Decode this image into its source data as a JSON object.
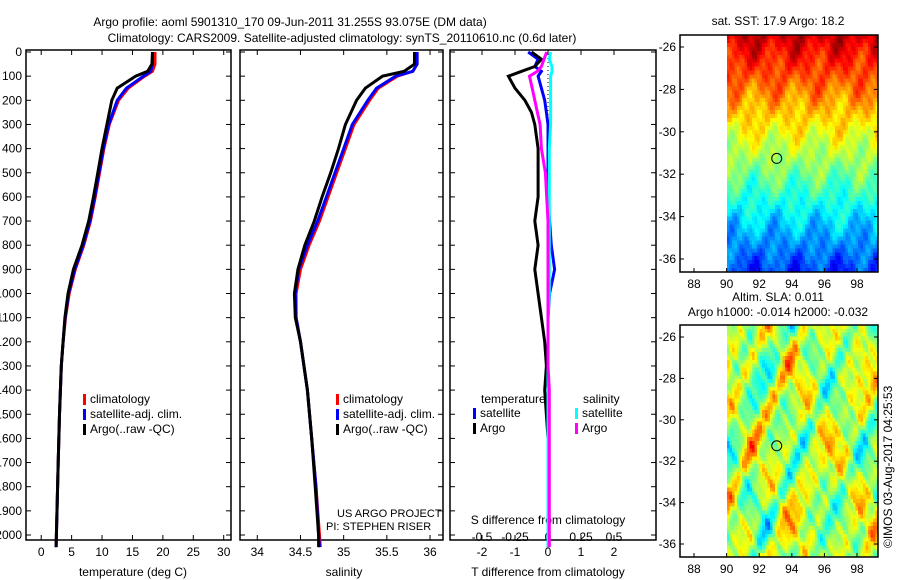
{
  "title_line1": "Argo profile: aoml 5901310_170 09-Jun-2011 31.255S 93.075E (DM data)",
  "title_line2": "Climatology: CARS2009. Satellite-adjusted climatology: synTS_20110610.nc (0.6d later)",
  "colors": {
    "climatology": "#ff0000",
    "satellite": "#0000ff",
    "argo": "#000000",
    "s_satellite": "#00ffff",
    "s_argo": "#ff00ff"
  },
  "chart_data": [
    {
      "type": "line",
      "name": "temperature",
      "xlabel": "temperature (deg C)",
      "xlim": [
        -2.5,
        31.2
      ],
      "ylim": [
        2050,
        0
      ],
      "xticks": [
        0,
        5,
        10,
        15,
        20,
        25,
        30
      ],
      "yticks": [
        0,
        100,
        200,
        300,
        400,
        500,
        600,
        700,
        800,
        900,
        1000,
        1100,
        1200,
        1300,
        1400,
        1500,
        1600,
        1700,
        1800,
        1900,
        2000
      ],
      "legend": [
        "climatology",
        "satellite-adj. clim.",
        "Argo(..raw -QC)"
      ],
      "legend_position": "lower-middle",
      "depth": [
        0,
        50,
        80,
        100,
        150,
        200,
        300,
        400,
        500,
        600,
        700,
        800,
        900,
        1000,
        1100,
        1200,
        1300,
        1500,
        1700,
        2000,
        2050
      ],
      "series": [
        {
          "name": "climatology",
          "color": "#ff0000",
          "values": [
            18.7,
            18.7,
            18.3,
            17,
            14.3,
            12.7,
            11.2,
            10.3,
            9.6,
            8.9,
            8.1,
            7,
            5.6,
            4.6,
            4,
            3.6,
            3.3,
            3,
            2.8,
            2.5,
            2.45
          ]
        },
        {
          "name": "satellite-adj. clim.",
          "color": "#0000ff",
          "values": [
            18.3,
            18.3,
            18,
            16.8,
            14,
            12.5,
            11.1,
            10.2,
            9.5,
            8.8,
            8,
            6.9,
            5.5,
            4.5,
            3.95,
            3.6,
            3.3,
            3,
            2.8,
            2.5,
            2.45
          ]
        },
        {
          "name": "Argo(..raw -QC)",
          "color": "#000000",
          "values": [
            18.3,
            18.2,
            17.5,
            15.5,
            12.5,
            11.6,
            10.8,
            10,
            9.3,
            8.6,
            7.8,
            6.7,
            5.3,
            4.4,
            3.9,
            3.6,
            3.3,
            3,
            2.8,
            2.5,
            2.45
          ]
        }
      ]
    },
    {
      "type": "line",
      "name": "salinity",
      "xlabel": "salinity",
      "xlim": [
        33.8,
        36.15
      ],
      "ylim": [
        2050,
        0
      ],
      "xticks": [
        34,
        34.5,
        35,
        35.5,
        36
      ],
      "legend": [
        "climatology",
        "satellite-adj. clim.",
        "Argo(..raw -QC)"
      ],
      "legend_position": "lower-middle",
      "annotation": [
        "US ARGO PROJECT",
        "PI: STEPHEN RISER"
      ],
      "depth": [
        0,
        50,
        80,
        100,
        150,
        200,
        300,
        400,
        500,
        600,
        700,
        800,
        900,
        1000,
        1100,
        1200,
        1400,
        1600,
        1800,
        2000,
        2050
      ],
      "series": [
        {
          "name": "climatology",
          "color": "#ff0000",
          "values": [
            35.85,
            35.85,
            35.8,
            35.62,
            35.4,
            35.3,
            35.12,
            35.02,
            34.92,
            34.82,
            34.72,
            34.6,
            34.5,
            34.45,
            34.45,
            34.5,
            34.58,
            34.63,
            34.68,
            34.72,
            34.73
          ]
        },
        {
          "name": "satellite-adj. clim.",
          "color": "#0000ff",
          "values": [
            35.85,
            35.85,
            35.8,
            35.6,
            35.38,
            35.28,
            35.1,
            35,
            34.9,
            34.8,
            34.7,
            34.58,
            34.48,
            34.44,
            34.45,
            34.5,
            34.58,
            34.63,
            34.68,
            34.71,
            34.72
          ]
        },
        {
          "name": "Argo(..raw -QC)",
          "color": "#000000",
          "values": [
            35.82,
            35.82,
            35.7,
            35.45,
            35.25,
            35.15,
            35.02,
            34.94,
            34.85,
            34.75,
            34.66,
            34.55,
            34.47,
            34.43,
            34.44,
            34.5,
            34.58,
            34.63,
            34.67,
            34.71,
            34.71
          ]
        }
      ]
    },
    {
      "type": "line",
      "name": "differences",
      "xlabel": "T difference from climatology",
      "x2label": "S difference from climatology",
      "xlim": [
        -3,
        3.2
      ],
      "xticks": [
        -2,
        -1,
        0,
        1,
        2
      ],
      "x2ticks": [
        -0.5,
        -0.25,
        0,
        0.25,
        0.5
      ],
      "x2tick_labels": [
        "-0.5",
        "-0.25",
        "0",
        "0.25",
        "0.5"
      ],
      "legend_titles": [
        "temperature",
        "salinity"
      ],
      "legend": [
        "satellite",
        "Argo",
        "satellite",
        "Argo"
      ],
      "depth": [
        0,
        30,
        60,
        80,
        100,
        150,
        200,
        250,
        300,
        400,
        500,
        600,
        700,
        800,
        900,
        1000,
        1100,
        1200,
        1300,
        1400,
        1600,
        2050
      ],
      "series": [
        {
          "name": "T satellite",
          "color": "#0000ff",
          "values": [
            -0.6,
            -0.3,
            -0.4,
            -0.2,
            -0.3,
            -0.2,
            -0.1,
            -0.05,
            0,
            0,
            0,
            0,
            0.05,
            0.1,
            0.2,
            0.05,
            0,
            0,
            0,
            0,
            0,
            0
          ]
        },
        {
          "name": "T Argo",
          "color": "#000000",
          "values": [
            -0.5,
            -0.2,
            -0.4,
            -0.8,
            -1.2,
            -1.0,
            -0.7,
            -0.5,
            -0.4,
            -0.3,
            -0.3,
            -0.3,
            -0.4,
            -0.3,
            -0.4,
            -0.3,
            -0.2,
            -0.1,
            -0.05,
            -0.1,
            0,
            0
          ]
        },
        {
          "name": "S satellite",
          "color": "#00ffff",
          "values": [
            0.02,
            0.01,
            0.03,
            0.03,
            0.02,
            0.02,
            0.02,
            0.02,
            0.02,
            0.01,
            0.01,
            0.01,
            0.01,
            0.01,
            0.01,
            0.01,
            0,
            0,
            0,
            0,
            0,
            0
          ]
        },
        {
          "name": "S Argo",
          "color": "#ff00ff",
          "values": [
            -0.01,
            -0.03,
            -0.05,
            -0.08,
            -0.14,
            -0.12,
            -0.1,
            -0.08,
            -0.06,
            -0.05,
            -0.02,
            -0.01,
            0,
            0,
            0,
            0,
            0,
            0,
            0,
            0.01,
            0.01,
            0.01
          ]
        }
      ]
    },
    {
      "type": "heatmap",
      "name": "sst-map",
      "title": "sat. SST: 17.9 Argo: 18.2",
      "xlim": [
        87.2,
        99.2
      ],
      "ylim": [
        -37.2,
        -25.3
      ],
      "xticks": [
        88,
        90,
        92,
        94,
        96,
        98
      ],
      "yticks": [
        -26,
        -28,
        -30,
        -32,
        -34,
        -36
      ],
      "marker": {
        "lon": 93.075,
        "lat": -31.255
      }
    },
    {
      "type": "heatmap",
      "name": "sla-map",
      "title": "Altim. SLA: 0.011",
      "subtitle": "Argo h1000: -0.014 h2000: -0.032",
      "xlim": [
        87.2,
        99.2
      ],
      "ylim": [
        -37.2,
        -25.3
      ],
      "xticks": [
        88,
        90,
        92,
        94,
        96,
        98
      ],
      "yticks": [
        -26,
        -28,
        -30,
        -32,
        -34,
        -36
      ],
      "marker": {
        "lon": 93.075,
        "lat": -31.255
      }
    }
  ],
  "footer": "©IMOS 03-Aug-2017 04:25:53"
}
